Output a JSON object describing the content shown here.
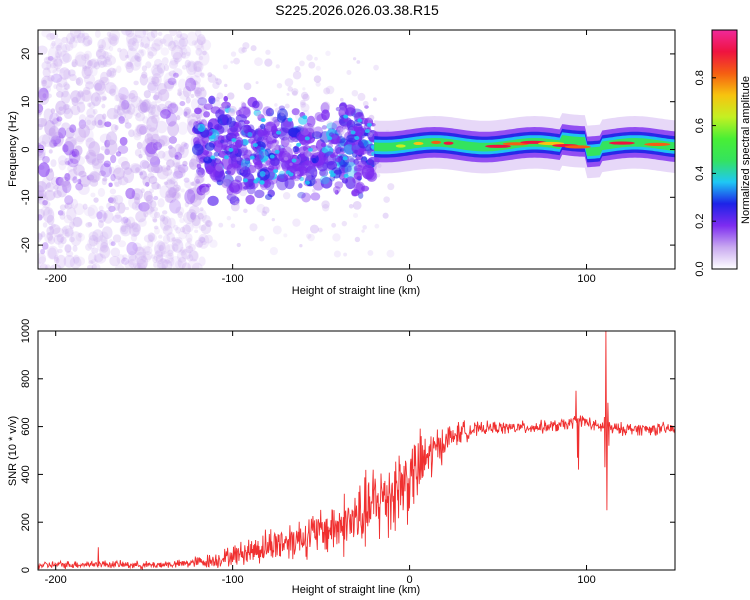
{
  "figure": {
    "title": "S225.2026.026.03.38.R15"
  },
  "chart_data": [
    {
      "type": "heatmap",
      "name": "spectrogram",
      "xlabel": "Height of straight line (km)",
      "ylabel": "Frequency (Hz)",
      "xlim": [
        -210,
        150
      ],
      "ylim": [
        -25,
        25
      ],
      "xticks": [
        -200,
        -100,
        0,
        100
      ],
      "yticks": [
        -20,
        -10,
        0,
        10,
        20
      ],
      "colorbar": {
        "label": "Normalized spectral amplitude",
        "range": [
          0.0,
          1.0
        ],
        "ticks": [
          0.0,
          0.2,
          0.4,
          0.6,
          0.8
        ],
        "tick_labels": [
          "0.0",
          "0.2",
          "0.4",
          "0.6",
          "0.8"
        ],
        "colormap": [
          "#ffffff",
          "#c9a9f0",
          "#7d2cf0",
          "#1d23e8",
          "#1fc8f5",
          "#34e35e",
          "#49ef35",
          "#c4f022",
          "#f7c40f",
          "#f55f12",
          "#ef1340",
          "#f0299a"
        ]
      },
      "description_data": {
        "carrier_frequency_hz": 1.0,
        "carrier_x_range_km": [
          -20,
          150
        ],
        "noisy_x_range_km": [
          -210,
          -120
        ],
        "blob_cluster_x_range_km": [
          -120,
          -20
        ]
      }
    },
    {
      "type": "line",
      "name": "snr",
      "xlabel": "Height of straight line (km)",
      "ylabel": "SNR (10 * v/v)",
      "xlim": [
        -210,
        150
      ],
      "ylim": [
        0,
        1000
      ],
      "xticks": [
        -200,
        -100,
        0,
        100
      ],
      "yticks": [
        0,
        200,
        400,
        600,
        800,
        1000
      ],
      "line_color": "#f03030",
      "profile": {
        "x": [
          -210,
          -175,
          -150,
          -130,
          -110,
          -90,
          -70,
          -50,
          -30,
          -15,
          0,
          10,
          20,
          30,
          45,
          60,
          80,
          90,
          95,
          100,
          105,
          110,
          112,
          115,
          120,
          130,
          150
        ],
        "y": [
          20,
          25,
          20,
          25,
          40,
          80,
          120,
          160,
          210,
          300,
          380,
          470,
          540,
          580,
          595,
          595,
          600,
          610,
          630,
          620,
          600,
          600,
          600,
          590,
          590,
          590,
          590
        ]
      },
      "noise": {
        "x": [
          -210,
          -130,
          -100,
          -80,
          -50,
          -30,
          -10,
          0,
          10,
          20,
          40,
          150
        ],
        "amplitude": [
          15,
          15,
          40,
          70,
          90,
          140,
          180,
          160,
          120,
          60,
          25,
          25
        ]
      },
      "spikes": [
        {
          "x": -176,
          "y": 95
        },
        {
          "x": 94,
          "y": 750
        },
        {
          "x": 95,
          "y": 470
        },
        {
          "x": 95.5,
          "y": 420
        },
        {
          "x": 110,
          "y": 640
        },
        {
          "x": 110.5,
          "y": 430
        },
        {
          "x": 111,
          "y": 1000
        },
        {
          "x": 111.5,
          "y": 250
        },
        {
          "x": 112,
          "y": 700
        },
        {
          "x": 112.5,
          "y": 520
        }
      ]
    }
  ]
}
